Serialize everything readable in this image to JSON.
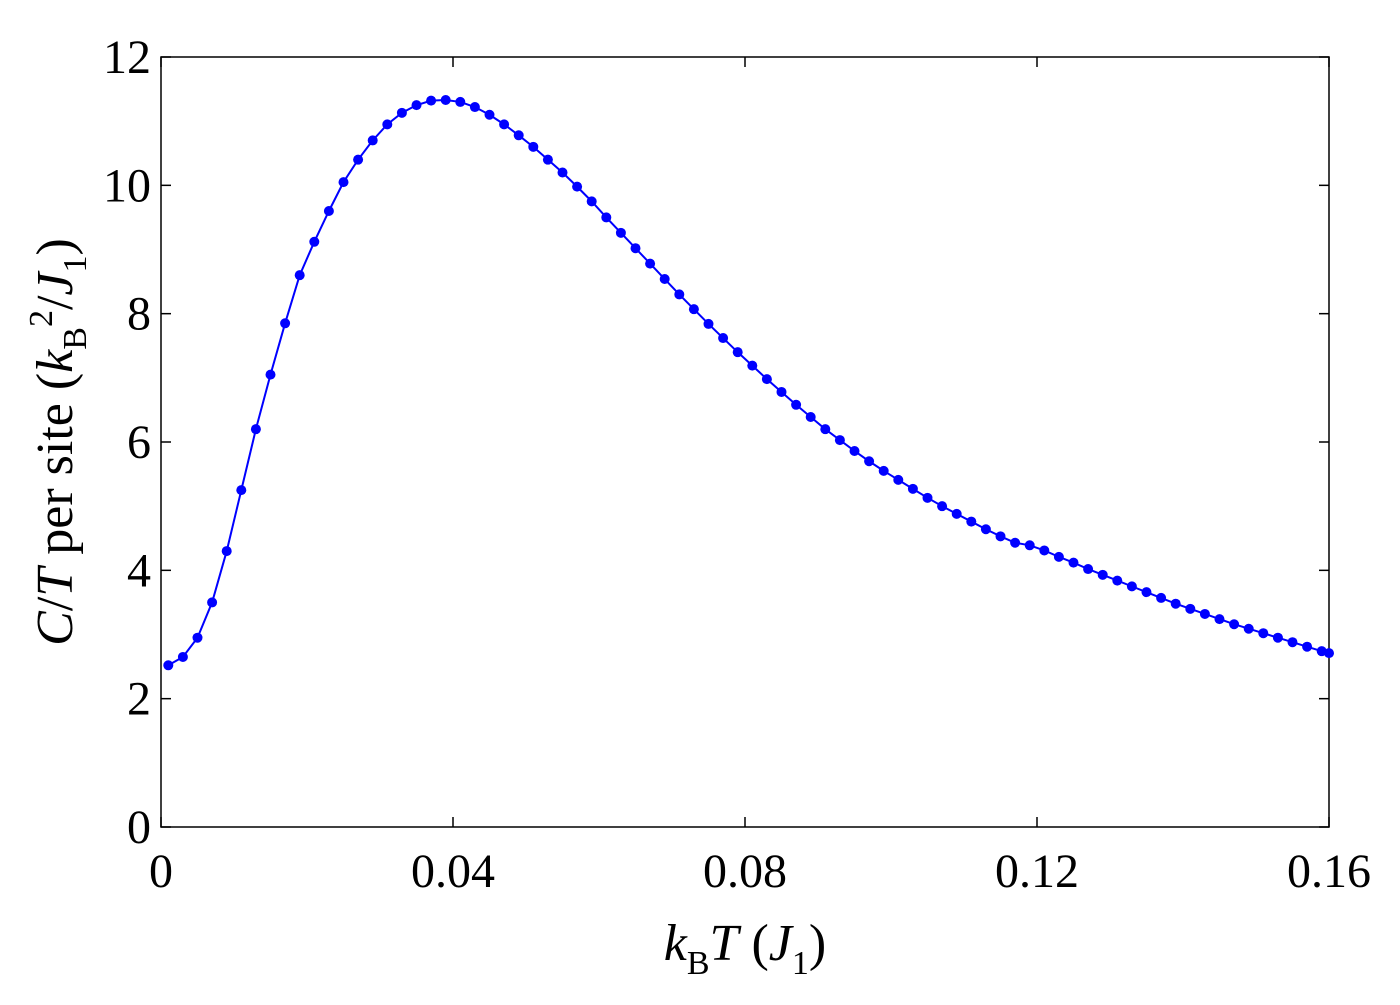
{
  "chart_data": {
    "type": "line",
    "xlabel": [
      {
        "text": "k",
        "italic": true
      },
      {
        "text": "B",
        "sub": true
      },
      {
        "text": "T",
        "italic": true
      },
      {
        "text": " ("
      },
      {
        "text": "J",
        "italic": true
      },
      {
        "text": "1",
        "sub": true
      },
      {
        "text": ")"
      }
    ],
    "ylabel": [
      {
        "text": "C",
        "italic": true
      },
      {
        "text": "/"
      },
      {
        "text": "T",
        "italic": true
      },
      {
        "text": " per site ("
      },
      {
        "text": "k",
        "italic": true
      },
      {
        "text": "B",
        "sub": true
      },
      {
        "text": "2",
        "sup": true
      },
      {
        "text": "/"
      },
      {
        "text": "J",
        "italic": true
      },
      {
        "text": "1",
        "sub": true
      },
      {
        "text": ")"
      }
    ],
    "x": [
      0.001,
      0.003,
      0.005,
      0.007,
      0.009,
      0.011,
      0.013,
      0.015,
      0.017,
      0.019,
      0.021,
      0.023,
      0.025,
      0.027,
      0.029,
      0.031,
      0.033,
      0.035,
      0.037,
      0.039,
      0.041,
      0.043,
      0.045,
      0.047,
      0.049,
      0.051,
      0.053,
      0.055,
      0.057,
      0.059,
      0.061,
      0.063,
      0.065,
      0.067,
      0.069,
      0.071,
      0.073,
      0.075,
      0.077,
      0.079,
      0.081,
      0.083,
      0.085,
      0.087,
      0.089,
      0.091,
      0.093,
      0.095,
      0.097,
      0.099,
      0.101,
      0.103,
      0.105,
      0.107,
      0.109,
      0.111,
      0.113,
      0.115,
      0.117,
      0.119,
      0.121,
      0.123,
      0.125,
      0.127,
      0.129,
      0.131,
      0.133,
      0.135,
      0.137,
      0.139,
      0.141,
      0.143,
      0.145,
      0.147,
      0.149,
      0.151,
      0.153,
      0.155,
      0.157,
      0.159,
      0.16
    ],
    "series": [
      {
        "name": "C/T",
        "color": "#0000ff",
        "values": [
          2.52,
          2.65,
          2.95,
          3.5,
          4.3,
          5.25,
          6.2,
          7.05,
          7.85,
          8.6,
          9.12,
          9.6,
          10.05,
          10.4,
          10.7,
          10.95,
          11.13,
          11.25,
          11.32,
          11.33,
          11.3,
          11.22,
          11.1,
          10.95,
          10.78,
          10.6,
          10.4,
          10.2,
          9.98,
          9.75,
          9.5,
          9.26,
          9.02,
          8.78,
          8.54,
          8.3,
          8.07,
          7.84,
          7.62,
          7.4,
          7.19,
          6.98,
          6.78,
          6.58,
          6.39,
          6.2,
          6.03,
          5.86,
          5.7,
          5.55,
          5.41,
          5.27,
          5.13,
          5.0,
          4.88,
          4.76,
          4.64,
          4.53,
          4.43,
          4.39,
          4.31,
          4.21,
          4.12,
          4.02,
          3.93,
          3.84,
          3.75,
          3.66,
          3.57,
          3.48,
          3.4,
          3.32,
          3.24,
          3.16,
          3.09,
          3.02,
          2.95,
          2.88,
          2.81,
          2.74,
          2.71
        ]
      }
    ],
    "xlim": [
      0,
      0.16
    ],
    "xticks": [
      0,
      0.04,
      0.08,
      0.12,
      0.16
    ],
    "ylim": [
      0,
      12
    ],
    "yticks": [
      0,
      2,
      4,
      6,
      8,
      10,
      12
    ]
  }
}
